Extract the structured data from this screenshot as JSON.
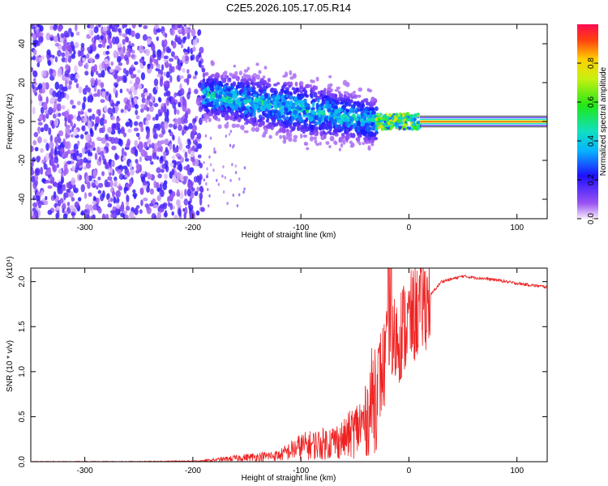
{
  "title": "C2E5.2026.105.17.05.R14",
  "chart_data": [
    {
      "type": "heatmap",
      "name": "spectrogram",
      "xlabel": "Height of straight line (km)",
      "ylabel": "Frequency (Hz)",
      "xlim": [
        -350,
        128
      ],
      "ylim": [
        -50,
        50
      ],
      "xticks": [
        -300,
        -200,
        -100,
        0,
        100
      ],
      "yticks": [
        -40,
        -20,
        0,
        20,
        40
      ],
      "colorbar": {
        "label": "Normalized spectral amplitude",
        "range": [
          0.0,
          1.0
        ],
        "ticks": [
          0.0,
          0.2,
          0.4,
          0.6,
          0.8
        ]
      },
      "regions": [
        {
          "description": "noise",
          "x_range": [
            -350,
            -190
          ],
          "freq_range": [
            -50,
            50
          ],
          "amplitude": 0.15
        },
        {
          "description": "signal",
          "x_range": [
            -190,
            -30
          ],
          "freq_center_start": 14,
          "freq_center_end": 0,
          "amplitude": 0.35
        },
        {
          "description": "tone",
          "x_range": [
            10,
            128
          ],
          "freq_center": 0,
          "amplitude": 0.95
        }
      ]
    },
    {
      "type": "line",
      "name": "snr",
      "xlabel": "Height of straight line (km)",
      "ylabel": "SNR (10 * v/v)",
      "y_multiplier": "(x10⁴)",
      "xlim": [
        -350,
        128
      ],
      "ylim": [
        0,
        2.15
      ],
      "xticks": [
        -300,
        -200,
        -100,
        0,
        100
      ],
      "yticks": [
        0.0,
        0.5,
        1.0,
        1.5,
        2.0
      ],
      "color": "#ee2222",
      "series": [
        {
          "name": "SNR",
          "x": [
            -350,
            -250,
            -190,
            -160,
            -120,
            -100,
            -80,
            -60,
            -40,
            -30,
            -20,
            -15,
            -10,
            0,
            10,
            20,
            30,
            50,
            80,
            100,
            128
          ],
          "y": [
            0.0,
            0.0,
            0.01,
            0.04,
            0.07,
            0.17,
            0.2,
            0.25,
            0.45,
            0.85,
            1.15,
            1.3,
            1.4,
            1.55,
            1.7,
            1.85,
            2.0,
            2.06,
            2.02,
            1.98,
            1.94
          ]
        }
      ]
    }
  ]
}
